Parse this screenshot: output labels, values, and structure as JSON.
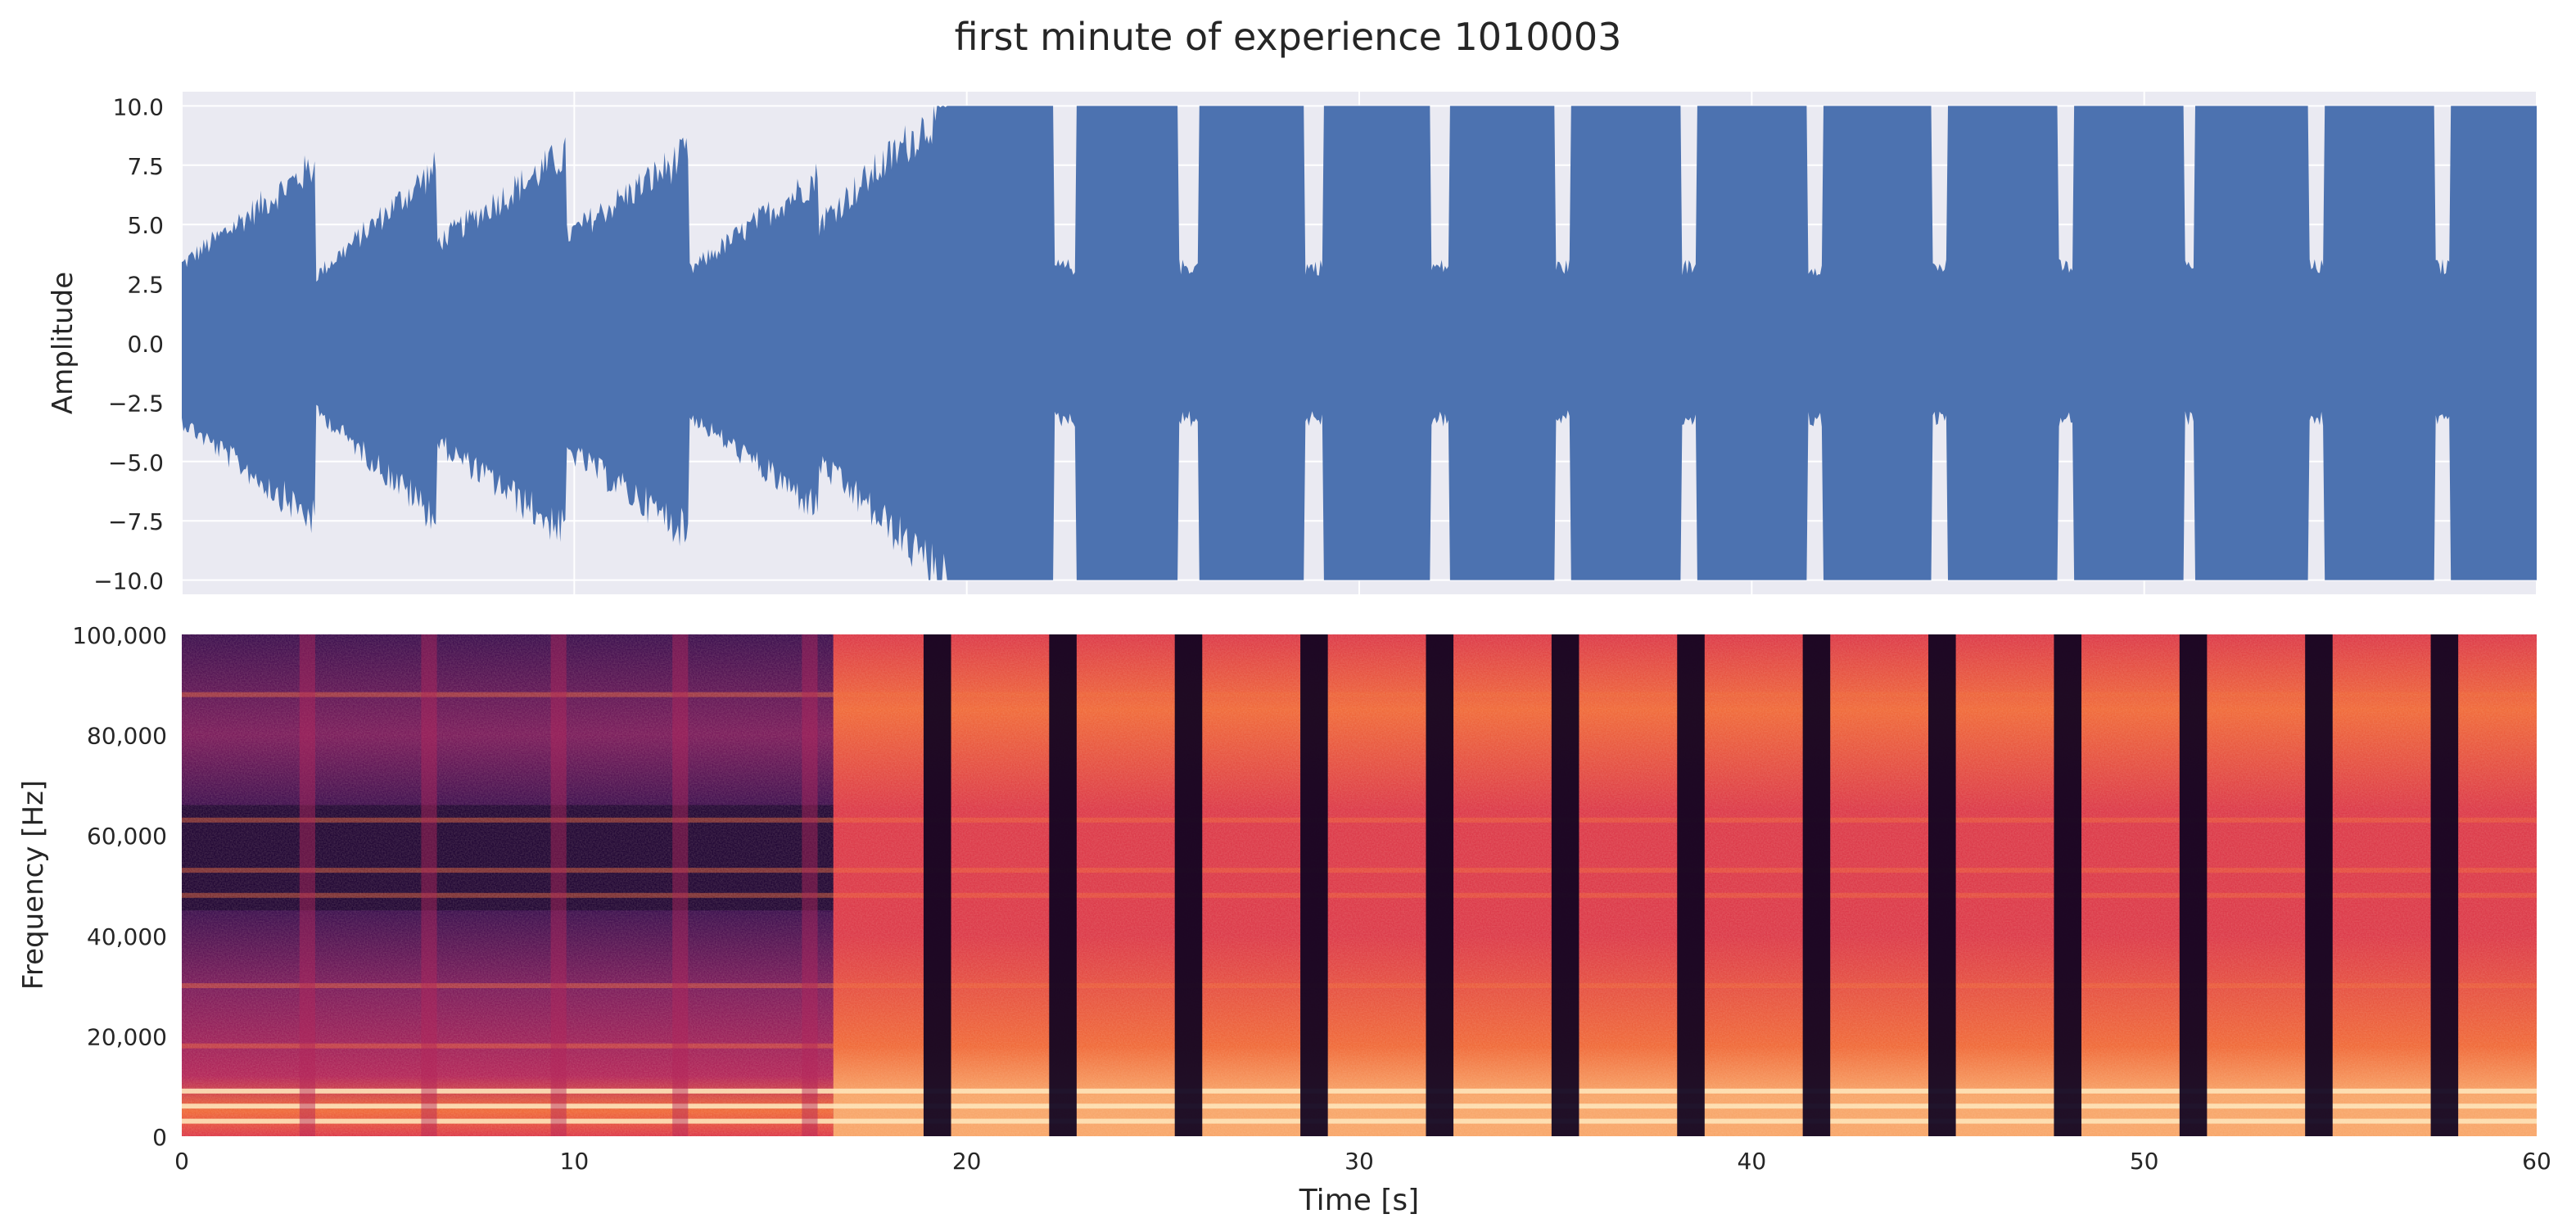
{
  "title": "first minute of experience 1010003",
  "colors": {
    "waveform": "#4c72b0",
    "axes_background": "#eaeaf2",
    "grid": "#ffffff",
    "text": "#262626",
    "spectrogram_colormap": [
      "#0d0221",
      "#3b0f4f",
      "#7a1c5c",
      "#b3265a",
      "#dc3a4a",
      "#f06a3a",
      "#f8a66a",
      "#fde4b8"
    ]
  },
  "chart_data": [
    {
      "type": "line",
      "name": "waveform",
      "xlabel": "",
      "ylabel": "Amplitude",
      "xlim": [
        0,
        60
      ],
      "ylim": [
        -10.6,
        10.6
      ],
      "x_ticks": [
        0,
        10,
        20,
        30,
        40,
        50,
        60
      ],
      "y_ticks": [
        -10.0,
        -7.5,
        -5.0,
        -2.5,
        0.0,
        2.5,
        5.0,
        7.5,
        10.0
      ],
      "y_tick_labels": [
        "−10.0",
        "−7.5",
        "−5.0",
        "−2.5",
        "0.0",
        "2.5",
        "5.0",
        "7.5",
        "10.0"
      ],
      "grid": true,
      "envelope_segments": [
        {
          "start": 0.0,
          "end": 3.4,
          "amp_start": 3.3,
          "amp_end": 7.5
        },
        {
          "start": 3.4,
          "end": 6.5,
          "amp_start": 2.8,
          "amp_end": 7.4
        },
        {
          "start": 6.5,
          "end": 9.8,
          "amp_start": 4.2,
          "amp_end": 8.0
        },
        {
          "start": 9.8,
          "end": 12.9,
          "amp_start": 4.5,
          "amp_end": 8.0
        },
        {
          "start": 12.9,
          "end": 16.2,
          "amp_start": 3.0,
          "amp_end": 7.0
        },
        {
          "start": 16.2,
          "end": 19.5,
          "amp_start": 5.0,
          "amp_end": 10.0
        },
        {
          "start": 19.5,
          "end": 22.2,
          "amp_start": 10.0,
          "amp_end": 10.0
        },
        {
          "start": 22.8,
          "end": 25.4,
          "amp_start": 10.0,
          "amp_end": 10.0
        },
        {
          "start": 25.9,
          "end": 28.6,
          "amp_start": 10.0,
          "amp_end": 10.0
        },
        {
          "start": 29.1,
          "end": 31.8,
          "amp_start": 10.0,
          "amp_end": 10.0
        },
        {
          "start": 32.3,
          "end": 35.0,
          "amp_start": 10.0,
          "amp_end": 10.0
        },
        {
          "start": 35.4,
          "end": 38.2,
          "amp_start": 10.0,
          "amp_end": 10.0
        },
        {
          "start": 38.6,
          "end": 41.4,
          "amp_start": 10.0,
          "amp_end": 10.0
        },
        {
          "start": 41.8,
          "end": 44.6,
          "amp_start": 10.0,
          "amp_end": 10.0
        },
        {
          "start": 45.0,
          "end": 47.8,
          "amp_start": 10.0,
          "amp_end": 10.0
        },
        {
          "start": 48.2,
          "end": 51.0,
          "amp_start": 10.0,
          "amp_end": 10.0
        },
        {
          "start": 51.3,
          "end": 54.2,
          "amp_start": 10.0,
          "amp_end": 10.0
        },
        {
          "start": 54.6,
          "end": 57.4,
          "amp_start": 10.0,
          "amp_end": 10.0
        },
        {
          "start": 57.8,
          "end": 60.0,
          "amp_start": 10.0,
          "amp_end": 10.0
        }
      ],
      "quiet_gap_amplitude": 3.2
    },
    {
      "type": "heatmap",
      "name": "spectrogram",
      "xlabel": "Time [s]",
      "ylabel": "Frequency [Hz]",
      "xlim": [
        0,
        60
      ],
      "ylim": [
        0,
        100000
      ],
      "x_ticks": [
        0,
        10,
        20,
        30,
        40,
        50,
        60
      ],
      "y_ticks": [
        0,
        20000,
        40000,
        60000,
        80000,
        100000
      ],
      "y_tick_labels": [
        "0",
        "20,000",
        "40,000",
        "60,000",
        "80,000",
        "100,000"
      ],
      "low_energy_until": 16.6,
      "dark_bands": [
        {
          "start": 3.0,
          "end": 3.4
        },
        {
          "start": 6.1,
          "end": 6.5
        },
        {
          "start": 9.4,
          "end": 9.8
        },
        {
          "start": 12.5,
          "end": 12.9
        },
        {
          "start": 15.8,
          "end": 16.2
        },
        {
          "start": 18.9,
          "end": 19.6
        },
        {
          "start": 22.1,
          "end": 22.8
        },
        {
          "start": 25.3,
          "end": 26.0
        },
        {
          "start": 28.5,
          "end": 29.2
        },
        {
          "start": 31.7,
          "end": 32.4
        },
        {
          "start": 34.9,
          "end": 35.6
        },
        {
          "start": 38.1,
          "end": 38.8
        },
        {
          "start": 41.3,
          "end": 42.0
        },
        {
          "start": 44.5,
          "end": 45.2
        },
        {
          "start": 47.7,
          "end": 48.4
        },
        {
          "start": 50.9,
          "end": 51.6
        },
        {
          "start": 54.1,
          "end": 54.8
        },
        {
          "start": 57.3,
          "end": 58.0
        }
      ],
      "bright_lines_hz": [
        3000,
        6000,
        9000,
        18000,
        30000,
        48000,
        53000,
        63000,
        88000
      ]
    }
  ]
}
